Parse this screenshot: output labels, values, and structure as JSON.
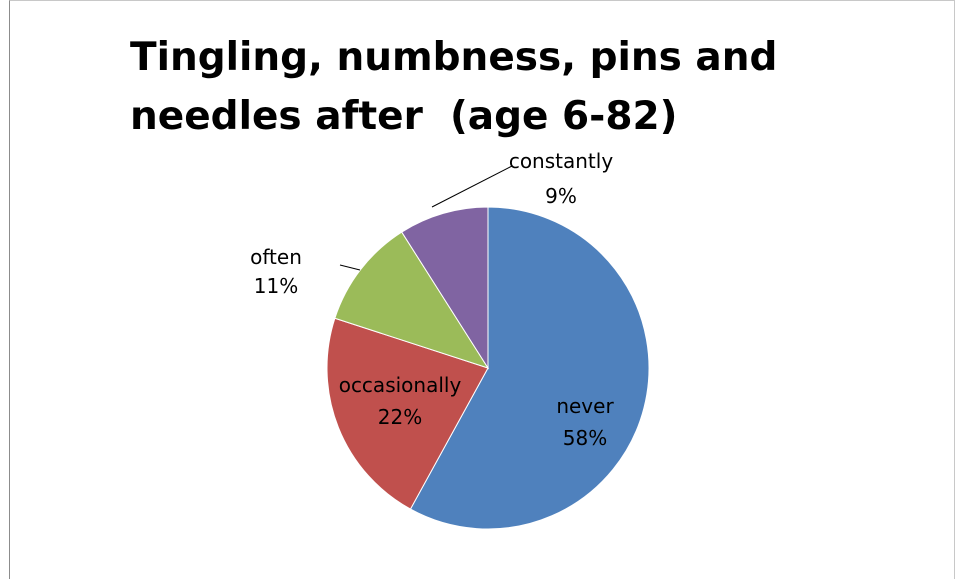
{
  "chart_data": {
    "type": "pie",
    "title": "Tingling, numbness, pins and needles after  (age 6-82)",
    "categories": [
      "never",
      "occasionally",
      "often",
      "constantly"
    ],
    "values": [
      58,
      22,
      11,
      9
    ],
    "value_labels": [
      "58%",
      "22%",
      "11%",
      "9%"
    ],
    "colors": [
      "#4f81bd",
      "#c0504d",
      "#9bbb59",
      "#8064a2"
    ],
    "legend": "none"
  }
}
